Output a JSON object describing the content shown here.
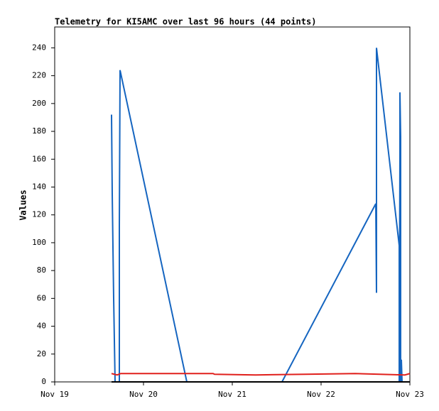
{
  "chart_data": {
    "type": "line",
    "title": "Telemetry for KI5AMC over last 96 hours (44 points)",
    "y_label": "Values",
    "xlim": [
      0,
      4
    ],
    "xticks": [
      {
        "value": 0,
        "label": "Nov 19"
      },
      {
        "value": 1,
        "label": "Nov 20"
      },
      {
        "value": 2,
        "label": "Nov 21"
      },
      {
        "value": 3,
        "label": "Nov 22"
      },
      {
        "value": 4,
        "label": "Nov 23"
      }
    ],
    "ylim": [
      0,
      255
    ],
    "yticks": [
      0,
      20,
      40,
      60,
      80,
      100,
      120,
      140,
      160,
      180,
      200,
      220,
      240
    ],
    "grid": false,
    "series": [
      {
        "color": "#1565c0",
        "x": [
          0.64,
          0.648,
          0.656,
          0.664,
          0.68,
          0.728,
          0.728,
          0.736,
          1.488,
          2.56,
          3.616,
          3.624,
          3.624,
          3.88,
          3.88,
          3.888,
          3.888,
          3.896,
          3.896,
          3.904,
          3.912
        ],
        "values": [
          192,
          135,
          97,
          60,
          0,
          0,
          112,
          224,
          0,
          0,
          128,
          64,
          240,
          98,
          0,
          168,
          208,
          176,
          0,
          16,
          0
        ]
      },
      {
        "color": "#e0201c",
        "x": [
          0.64,
          0.704,
          0.744,
          1.784,
          1.8,
          2.264,
          2.824,
          3.384,
          3.944,
          4.0
        ],
        "values": [
          6,
          5,
          6,
          6,
          5.5,
          5,
          5.5,
          6,
          5,
          6
        ]
      },
      {
        "color": "#000000",
        "x": [
          0.64,
          4.0
        ],
        "values": [
          0,
          0
        ]
      }
    ]
  }
}
